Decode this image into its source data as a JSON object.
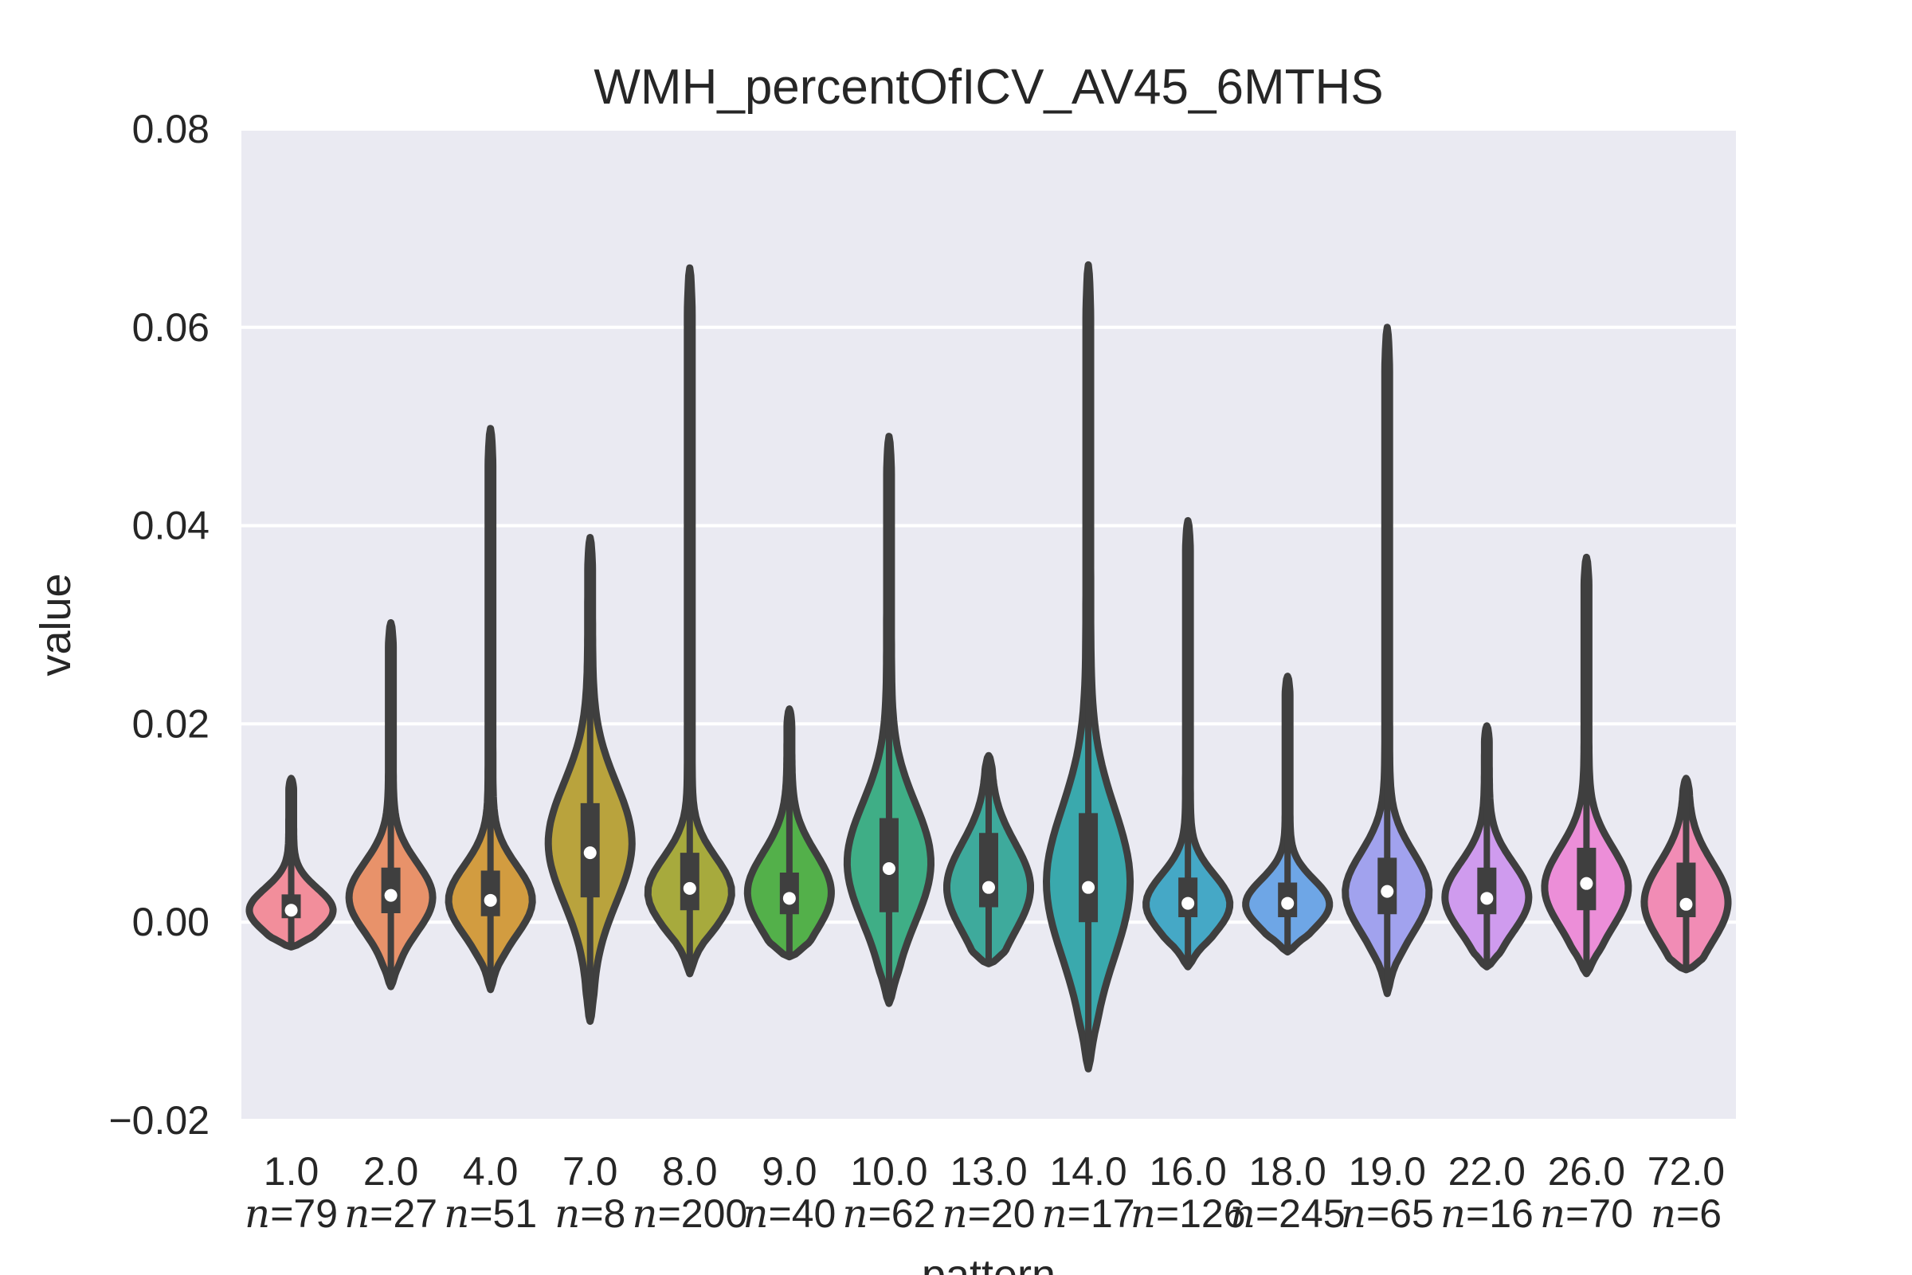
{
  "chart_data": {
    "type": "violin",
    "title": "WMH_percentOfICV_AV45_6MTHS",
    "xlabel": "pattern",
    "ylabel": "value",
    "ylim": [
      -0.02,
      0.08
    ],
    "yticks": [
      -0.02,
      0.0,
      0.02,
      0.04,
      0.06,
      0.08
    ],
    "ytick_labels": [
      "−0.02",
      "0.00",
      "0.02",
      "0.04",
      "0.06",
      "0.08"
    ],
    "grid": true,
    "n_prefix": "n",
    "categories": [
      {
        "label": "1.0",
        "n_text": "=79",
        "n": 79,
        "color": "#f28e9b",
        "min": -0.0025,
        "max": 0.0145,
        "median": 0.0012,
        "q1": 0.0004,
        "q3": 0.0028,
        "peak": 0.0012,
        "spread": 0.0022
      },
      {
        "label": "2.0",
        "n_text": "=27",
        "n": 27,
        "color": "#e8926a",
        "min": -0.0065,
        "max": 0.0302,
        "median": 0.0027,
        "q1": 0.0009,
        "q3": 0.0055,
        "peak": 0.0025,
        "spread": 0.0035
      },
      {
        "label": "4.0",
        "n_text": "=51",
        "n": 51,
        "color": "#d29c40",
        "min": -0.0068,
        "max": 0.0498,
        "median": 0.0022,
        "q1": 0.0006,
        "q3": 0.0052,
        "peak": 0.0022,
        "spread": 0.0035
      },
      {
        "label": "7.0",
        "n_text": "=8",
        "n": 8,
        "color": "#b9a33d",
        "min": -0.01,
        "max": 0.0388,
        "median": 0.007,
        "q1": 0.0025,
        "q3": 0.012,
        "peak": 0.008,
        "spread": 0.006
      },
      {
        "label": "8.0",
        "n_text": "=200",
        "n": 200,
        "color": "#a7aa3d",
        "min": -0.0052,
        "max": 0.066,
        "median": 0.0034,
        "q1": 0.0012,
        "q3": 0.007,
        "peak": 0.003,
        "spread": 0.0035
      },
      {
        "label": "9.0",
        "n_text": "=40",
        "n": 40,
        "color": "#53b04a",
        "min": -0.0035,
        "max": 0.0215,
        "median": 0.0024,
        "q1": 0.0008,
        "q3": 0.005,
        "peak": 0.003,
        "spread": 0.004
      },
      {
        "label": "10.0",
        "n_text": "=62",
        "n": 62,
        "color": "#3fae86",
        "min": -0.0082,
        "max": 0.049,
        "median": 0.0054,
        "q1": 0.001,
        "q3": 0.0105,
        "peak": 0.006,
        "spread": 0.006
      },
      {
        "label": "13.0",
        "n_text": "=20",
        "n": 20,
        "color": "#3eaa9c",
        "min": -0.0042,
        "max": 0.0168,
        "median": 0.0035,
        "q1": 0.0015,
        "q3": 0.009,
        "peak": 0.0035,
        "spread": 0.0045
      },
      {
        "label": "14.0",
        "n_text": "=17",
        "n": 17,
        "color": "#3aa9ad",
        "min": -0.0148,
        "max": 0.0663,
        "median": 0.0035,
        "q1": 0.0,
        "q3": 0.011,
        "peak": 0.004,
        "spread": 0.0075
      },
      {
        "label": "16.0",
        "n_text": "=126",
        "n": 126,
        "color": "#45a8c6",
        "min": -0.0045,
        "max": 0.0405,
        "median": 0.0019,
        "q1": 0.0005,
        "q3": 0.0045,
        "peak": 0.0018,
        "spread": 0.003
      },
      {
        "label": "18.0",
        "n_text": "=245",
        "n": 245,
        "color": "#6ea6e6",
        "min": -0.003,
        "max": 0.0248,
        "median": 0.0019,
        "q1": 0.0005,
        "q3": 0.004,
        "peak": 0.0018,
        "spread": 0.0025
      },
      {
        "label": "19.0",
        "n_text": "=65",
        "n": 65,
        "color": "#a1a2ee",
        "min": -0.0072,
        "max": 0.06,
        "median": 0.0031,
        "q1": 0.0008,
        "q3": 0.0065,
        "peak": 0.003,
        "spread": 0.004
      },
      {
        "label": "22.0",
        "n_text": "=16",
        "n": 16,
        "color": "#cf9bee",
        "min": -0.0045,
        "max": 0.0198,
        "median": 0.0024,
        "q1": 0.0008,
        "q3": 0.0055,
        "peak": 0.0025,
        "spread": 0.0035
      },
      {
        "label": "26.0",
        "n_text": "=70",
        "n": 70,
        "color": "#ec8ed8",
        "min": -0.0052,
        "max": 0.0368,
        "median": 0.0039,
        "q1": 0.0012,
        "q3": 0.0075,
        "peak": 0.0035,
        "spread": 0.004
      },
      {
        "label": "72.0",
        "n_text": "=6",
        "n": 6,
        "color": "#f18cb5",
        "min": -0.0048,
        "max": 0.0145,
        "median": 0.0018,
        "q1": 0.0005,
        "q3": 0.006,
        "peak": 0.002,
        "spread": 0.004
      }
    ]
  }
}
